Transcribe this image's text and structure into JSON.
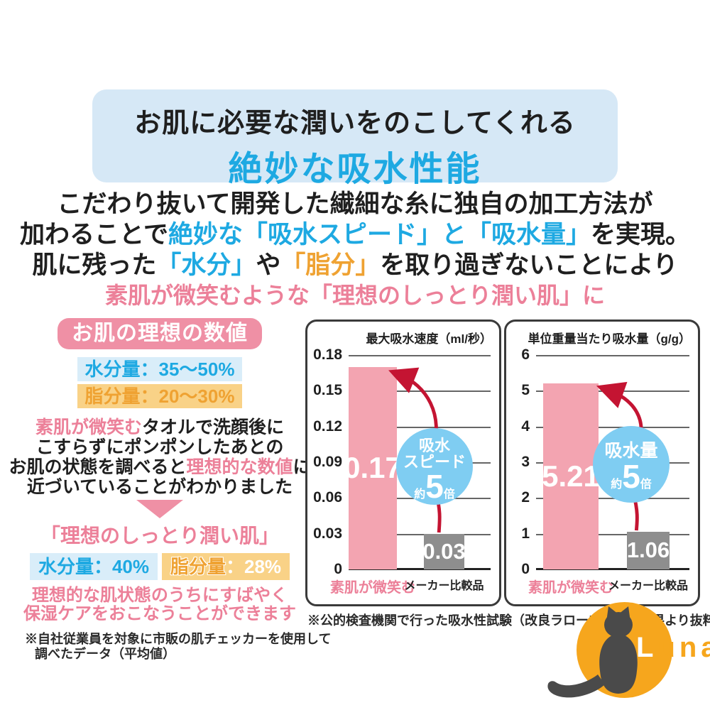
{
  "header": {
    "line1": "お肌に必要な潤いをのこしてくれる",
    "line2": "絶妙な吸水性能"
  },
  "intro": {
    "line1": "こだわり抜いて開発した繊細な糸に独自の加工方法が",
    "line2": [
      "加わることで",
      "絶妙な「吸水スピード」と「吸水量」",
      "を実現。"
    ],
    "line3": [
      "肌に残った",
      "「水分」",
      "や",
      "「脂分」",
      "を取り過ぎないことにより"
    ],
    "line4": "素肌が微笑むような「理想のしっとり潤い肌」に"
  },
  "ideal_panel": {
    "badge": "お肌の理想の数値",
    "moisture_range": "水分量：35～50%",
    "oil_range": "脂分量：20～30%",
    "desc": {
      "l1_pink": "素肌が微笑む",
      "l1_black": "タオルで洗顔後に",
      "l2": "こすらずにポンポンしたあとの",
      "l3_black1": "お肌の状態を調べると",
      "l3_pink": "理想的な数値",
      "l3_black2": "に",
      "l4": "近づいていることがわかりました"
    },
    "result_title": "「理想のしっとり潤い肌」",
    "moisture_result": "水分量：40%",
    "oil_result_label": "脂分量",
    "oil_result_value": "：28%",
    "care_l1": "理想的な肌状態のうちにすばやく",
    "care_l2": "保湿ケアをおこなうことができます",
    "footnote_l1": "※自社従業員を対象に市販の肌チェッカーを使用して",
    "footnote_l2": "調べたデータ（平均値）"
  },
  "chart_data": [
    {
      "type": "bar",
      "title": "最大吸水速度（ml/秒）",
      "categories": [
        "素肌が微笑む",
        "メーカー比較品"
      ],
      "values": [
        0.17,
        0.03
      ],
      "value_labels": [
        "0.17",
        "0.03"
      ],
      "ylim": [
        0,
        0.18
      ],
      "yticks": [
        "0.18",
        "0.15",
        "0.12",
        "0.09",
        "0.06",
        "0.03",
        "0"
      ],
      "grid": true,
      "legend_position": "none",
      "series_colors": [
        "#f3a4b1",
        "#8e8e8e"
      ],
      "badge": {
        "line1": "吸水",
        "line2": "スピード",
        "prefix": "約",
        "multiplier": "5",
        "suffix": "倍"
      }
    },
    {
      "type": "bar",
      "title": "単位重量当たり吸水量（g/g）",
      "categories": [
        "素肌が微笑む",
        "メーカー比較品"
      ],
      "values": [
        5.21,
        1.06
      ],
      "value_labels": [
        "5.21",
        "1.06"
      ],
      "ylim": [
        0,
        6
      ],
      "yticks": [
        "6",
        "5",
        "4",
        "3",
        "2",
        "1",
        "0"
      ],
      "grid": true,
      "legend_position": "none",
      "series_colors": [
        "#f3a4b1",
        "#8e8e8e"
      ],
      "badge": {
        "line1": "吸水量",
        "prefix": "約",
        "multiplier": "5",
        "suffix": "倍"
      }
    }
  ],
  "charts_footnote": "※公的検査機関で行った吸水性試験（改良ラローズ法）の結果より抜粋",
  "logo": {
    "initial": "L",
    "rest": "una"
  },
  "colors": {
    "header_bg": "#d6e8f6",
    "accent_blue": "#1ea9e2",
    "light_blue_bg": "#d9edf9",
    "accent_orange": "#efa232",
    "orange_bg": "#f9d287",
    "pink_text": "#ec8099",
    "badge_pink": "#ef90a5",
    "bar_pink": "#f3a4b1",
    "bar_gray": "#8e8e8e",
    "arrow_red": "#c41432",
    "circle_blue": "#7fcdf2",
    "logo_orange": "#f6a61d",
    "cat_gray": "#4a4a4a",
    "text_black": "#1f1f1f"
  }
}
